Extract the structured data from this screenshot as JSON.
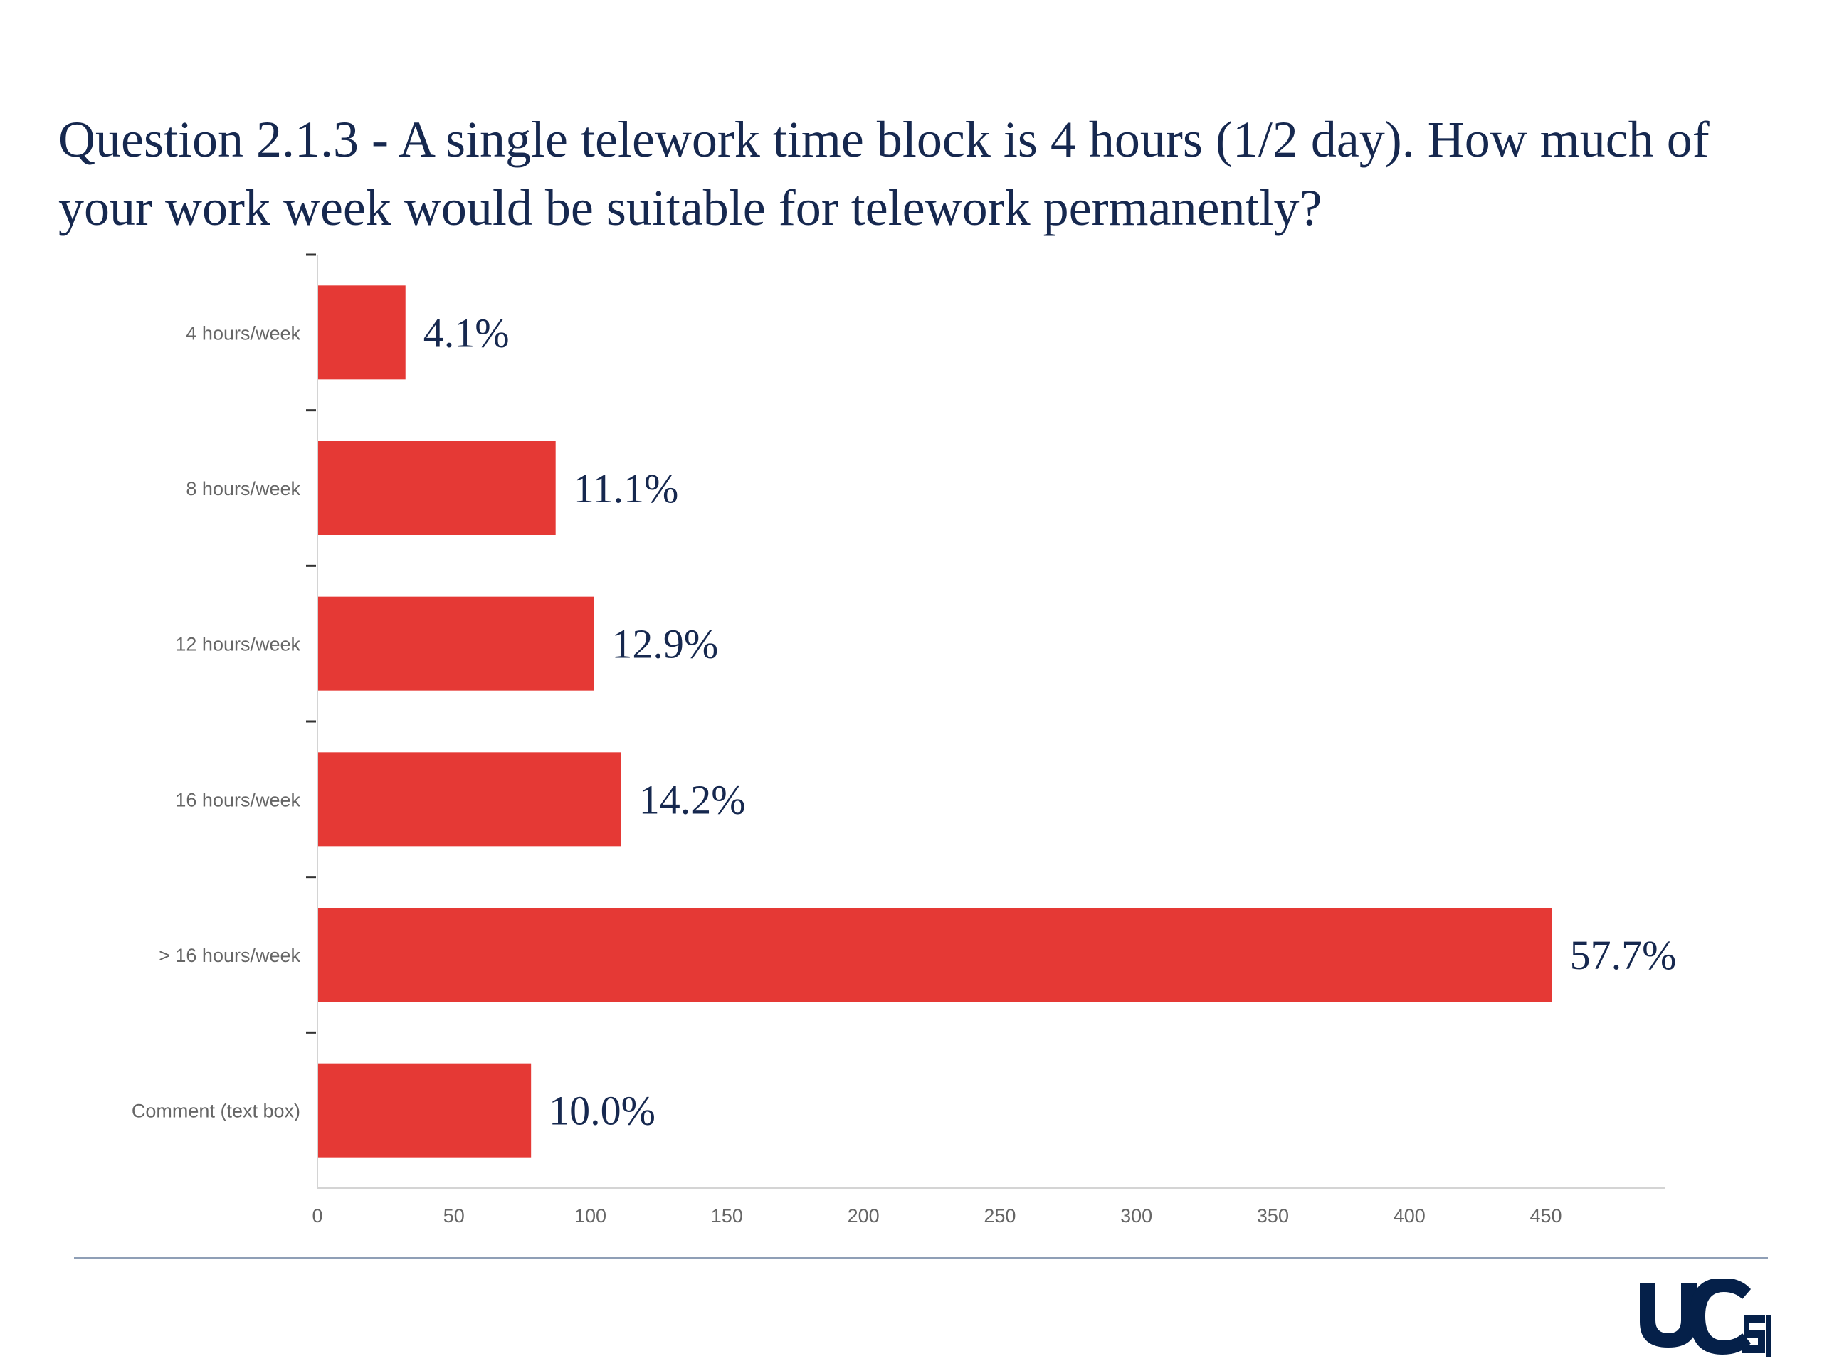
{
  "slide": {
    "title": "Question 2.1.3 - A single telework time block is 4 hours (1/2 day).   How much of your work week would be suitable for telework permanently?"
  },
  "logo": {
    "text": "UCSF"
  },
  "colors": {
    "bar": "#e53935",
    "title": "#16284f",
    "axis_text": "#666666",
    "axis_line": "#d4d4d4",
    "data_label": "#16284f",
    "footer_rule": "#8f9fb6"
  },
  "chart_data": {
    "type": "bar",
    "orientation": "horizontal",
    "categories": [
      "4 hours/week",
      "8 hours/week",
      "12 hours/week",
      "16 hours/week",
      "> 16 hours/week",
      "Comment (text box)"
    ],
    "values": [
      32,
      87,
      101,
      111,
      452,
      78
    ],
    "data_labels": [
      "4.1%",
      "11.1%",
      "12.9%",
      "14.2%",
      "57.7%",
      "10.0%"
    ],
    "xlim": [
      0,
      500
    ],
    "x_ticks": [
      0,
      50,
      100,
      150,
      200,
      250,
      300,
      350,
      400,
      450
    ],
    "grid": false,
    "legend": "none"
  }
}
